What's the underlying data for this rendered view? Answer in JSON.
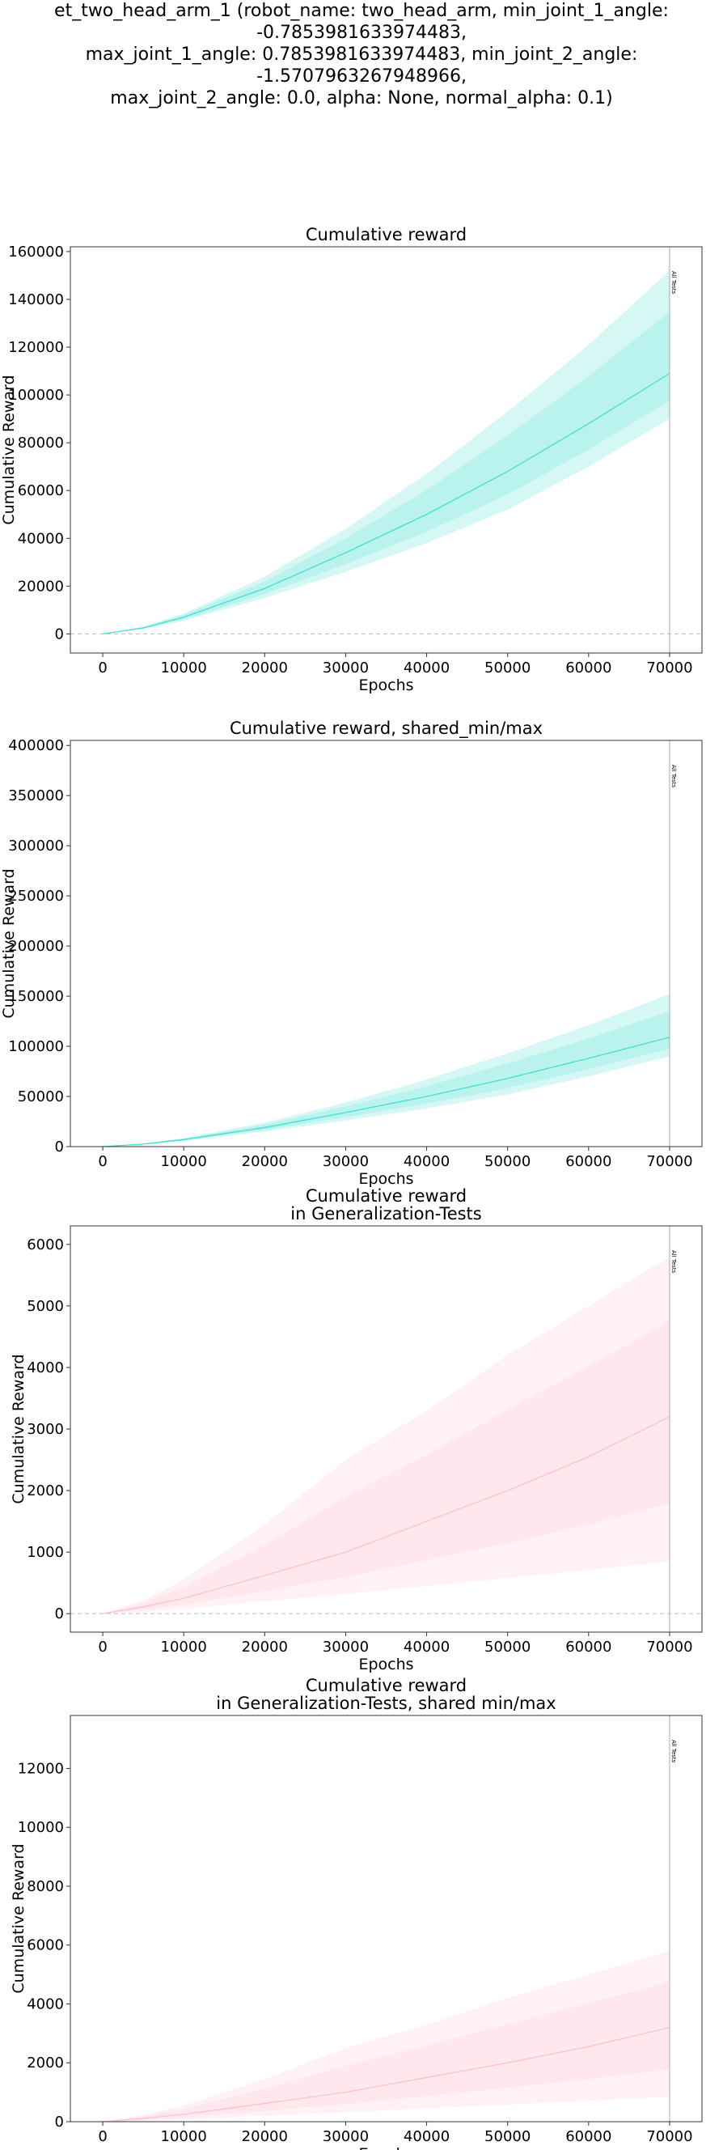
{
  "figure_title": "et_two_head_arm_1 (robot_name: two_head_arm, min_joint_1_angle: -0.7853981633974483,\nmax_joint_1_angle: 0.7853981633974483, min_joint_2_angle: -1.5707963267948966,\nmax_joint_2_angle: 0.0, alpha: None, normal_alpha: 0.1)",
  "colors": {
    "train": "#40e0d0",
    "generalization": "#ffc0cb"
  },
  "chart_data": [
    {
      "type": "line",
      "title": "Cumulative reward",
      "xlabel": "Epochs",
      "ylabel": "Cumulative Reward",
      "xlim": [
        -4000,
        74000
      ],
      "ylim": [
        -8000,
        162000
      ],
      "xticks": [
        0,
        10000,
        20000,
        30000,
        40000,
        50000,
        60000,
        70000
      ],
      "yticks": [
        0,
        20000,
        40000,
        60000,
        80000,
        100000,
        120000,
        140000,
        160000
      ],
      "hline": 0,
      "vline": {
        "x": 70000,
        "label": "All Tests"
      },
      "series": [
        {
          "x": [
            0,
            5000,
            10000,
            20000,
            30000,
            40000,
            50000,
            60000,
            70000
          ],
          "mean": [
            0,
            2500,
            7000,
            19000,
            34000,
            50000,
            68000,
            88000,
            109000
          ],
          "lower": [
            0,
            2000,
            5500,
            15000,
            26000,
            38000,
            52000,
            70000,
            90000
          ],
          "upper": [
            0,
            3000,
            8500,
            24000,
            44000,
            67000,
            93000,
            121000,
            152000
          ]
        }
      ]
    },
    {
      "type": "line",
      "title": "Cumulative reward, shared_min/max",
      "xlabel": "Epochs",
      "ylabel": "Cumulative Reward",
      "xlim": [
        -4000,
        74000
      ],
      "ylim": [
        0,
        405000
      ],
      "xticks": [
        0,
        10000,
        20000,
        30000,
        40000,
        50000,
        60000,
        70000
      ],
      "yticks": [
        0,
        50000,
        100000,
        150000,
        200000,
        250000,
        300000,
        350000,
        400000
      ],
      "vline": {
        "x": 70000,
        "label": "All Tests"
      },
      "series": [
        {
          "x": [
            0,
            5000,
            10000,
            20000,
            30000,
            40000,
            50000,
            60000,
            70000
          ],
          "mean": [
            0,
            2500,
            7000,
            19000,
            34000,
            50000,
            68000,
            88000,
            109000
          ],
          "lower": [
            0,
            2000,
            5500,
            15000,
            26000,
            38000,
            52000,
            70000,
            90000
          ],
          "upper": [
            0,
            3000,
            8500,
            24000,
            44000,
            67000,
            93000,
            121000,
            152000
          ]
        }
      ]
    },
    {
      "type": "line",
      "title": "Cumulative reward\nin Generalization-Tests",
      "xlabel": "Epochs",
      "ylabel": "Cumulative Reward",
      "xlim": [
        -4000,
        74000
      ],
      "ylim": [
        -300,
        6300
      ],
      "xticks": [
        0,
        10000,
        20000,
        30000,
        40000,
        50000,
        60000,
        70000
      ],
      "yticks": [
        0,
        1000,
        2000,
        3000,
        4000,
        5000,
        6000
      ],
      "hline": 0,
      "vline": {
        "x": 70000,
        "label": "All Tests"
      },
      "series": [
        {
          "x": [
            0,
            5000,
            10000,
            20000,
            30000,
            40000,
            50000,
            60000,
            70000
          ],
          "mean": [
            0,
            110,
            250,
            620,
            1000,
            1500,
            2000,
            2550,
            3200
          ],
          "lower": [
            0,
            30,
            80,
            200,
            320,
            450,
            580,
            710,
            850
          ],
          "upper": [
            0,
            220,
            550,
            1450,
            2500,
            3300,
            4200,
            5000,
            5800
          ]
        }
      ]
    },
    {
      "type": "line",
      "title": "Cumulative reward\nin Generalization-Tests, shared min/max",
      "xlabel": "Epochs",
      "ylabel": "Cumulative Reward",
      "xlim": [
        -4000,
        74000
      ],
      "ylim": [
        0,
        13800
      ],
      "xticks": [
        0,
        10000,
        20000,
        30000,
        40000,
        50000,
        60000,
        70000
      ],
      "yticks": [
        0,
        2000,
        4000,
        6000,
        8000,
        10000,
        12000
      ],
      "vline": {
        "x": 70000,
        "label": "All Tests"
      },
      "series": [
        {
          "x": [
            0,
            5000,
            10000,
            20000,
            30000,
            40000,
            50000,
            60000,
            70000
          ],
          "mean": [
            0,
            110,
            250,
            620,
            1000,
            1500,
            2000,
            2550,
            3200
          ],
          "lower": [
            0,
            30,
            80,
            200,
            320,
            450,
            580,
            710,
            850
          ],
          "upper": [
            0,
            220,
            550,
            1450,
            2500,
            3300,
            4200,
            5000,
            5800
          ]
        }
      ]
    }
  ]
}
